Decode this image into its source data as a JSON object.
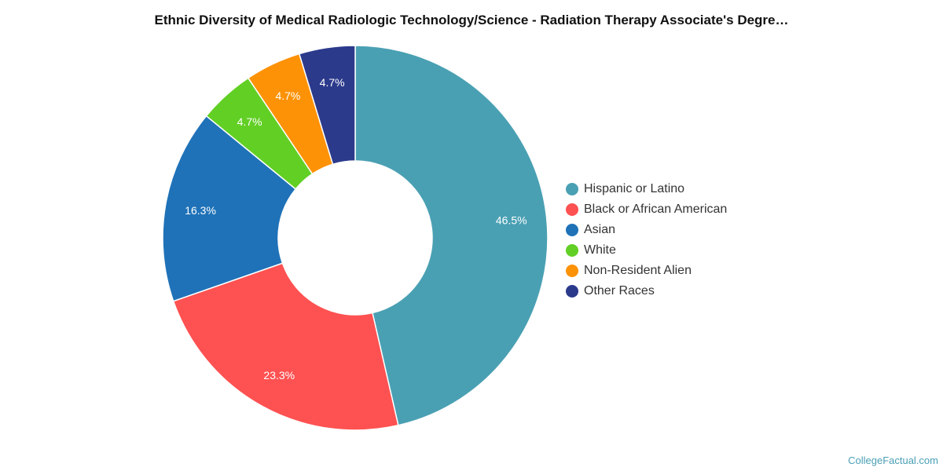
{
  "chart_data": {
    "type": "pie",
    "title": "Ethnic Diversity of Medical Radiologic Technology/Science - Radiation Therapy Associate's Degre…",
    "donut": true,
    "legend_position": "right",
    "categories": [
      "Hispanic or Latino",
      "Black or African American",
      "Asian",
      "White",
      "Non-Resident Alien",
      "Other Races"
    ],
    "values": [
      46.5,
      23.3,
      16.3,
      4.7,
      4.7,
      4.7
    ],
    "labels": [
      "46.5%",
      "23.3%",
      "16.3%",
      "4.7%",
      "4.7%",
      "4.7%"
    ],
    "colors": [
      "#4aa0b3",
      "#fe5151",
      "#1f72b8",
      "#62cf24",
      "#fd9206",
      "#2c3a8c"
    ]
  },
  "footer": {
    "source": "CollegeFactual.com"
  }
}
